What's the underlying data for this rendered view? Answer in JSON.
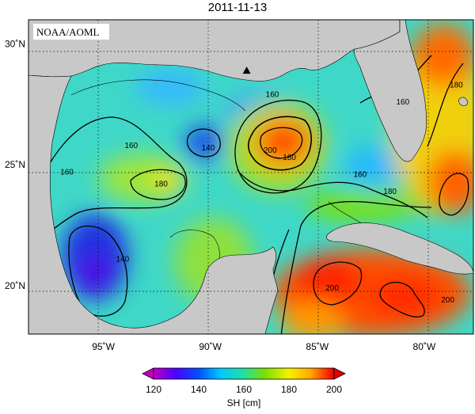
{
  "title": "2011-11-13",
  "credit": "NOAA/AOML",
  "map": {
    "variable": "SH",
    "units": "cm",
    "lon_range": [
      -98.5,
      -77.7
    ],
    "lat_range": [
      18.0,
      31.0
    ],
    "lon_ticks": [
      {
        "value": -95,
        "label": "95˚W"
      },
      {
        "value": -90,
        "label": "90˚W"
      },
      {
        "value": -85,
        "label": "85˚W"
      },
      {
        "value": -80,
        "label": "80˚W"
      }
    ],
    "lat_ticks": [
      {
        "value": 30,
        "label": "30˚N"
      },
      {
        "value": 25,
        "label": "25˚N"
      },
      {
        "value": 20,
        "label": "20˚N"
      }
    ],
    "grid": "dotted",
    "land_color": "#c8c8c8",
    "marker": {
      "symbol": "triangle",
      "lon": -88.3,
      "lat": 28.9
    },
    "contour_labels": [
      {
        "text": "160",
        "lon": -93.7,
        "lat": 25.8
      },
      {
        "text": "160",
        "lon": -96.7,
        "lat": 24.7
      },
      {
        "text": "180",
        "lon": -92.3,
        "lat": 24.2
      },
      {
        "text": "140",
        "lon": -90.1,
        "lat": 25.7
      },
      {
        "text": "160",
        "lon": -87.1,
        "lat": 27.9
      },
      {
        "text": "200",
        "lon": -87.2,
        "lat": 25.6
      },
      {
        "text": "180",
        "lon": -86.3,
        "lat": 25.3
      },
      {
        "text": "160",
        "lon": -83.0,
        "lat": 24.6
      },
      {
        "text": "180",
        "lon": -81.6,
        "lat": 23.9
      },
      {
        "text": "160",
        "lon": -81.0,
        "lat": 27.6
      },
      {
        "text": "180",
        "lon": -78.5,
        "lat": 28.3
      },
      {
        "text": "140",
        "lon": -94.1,
        "lat": 21.1
      },
      {
        "text": "200",
        "lon": -84.3,
        "lat": 19.9
      },
      {
        "text": "200",
        "lon": -78.9,
        "lat": 19.4
      }
    ]
  },
  "colorbar": {
    "label": "SH [cm]",
    "ticks": [
      "120",
      "140",
      "160",
      "180",
      "200"
    ],
    "colors": [
      "#c000c0",
      "#4b00ff",
      "#0050ff",
      "#00c8ff",
      "#22e0a0",
      "#7ee000",
      "#f6f000",
      "#ffa800",
      "#ff3c00",
      "#e00000"
    ]
  }
}
